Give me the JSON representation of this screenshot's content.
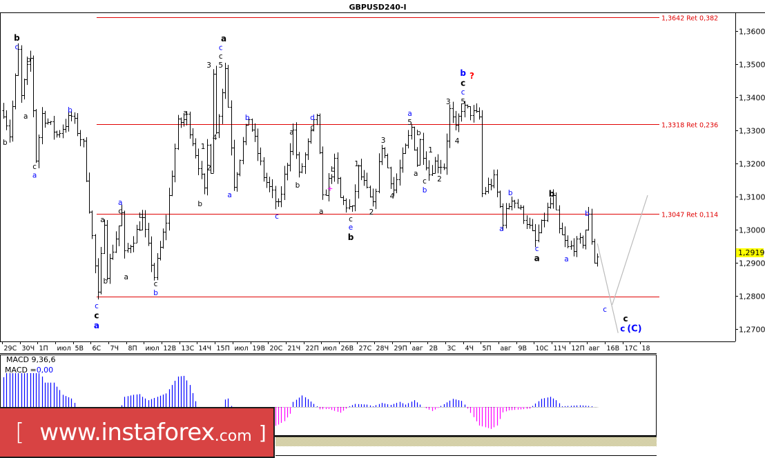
{
  "title": "GBPUSD240-I",
  "current_price_label": "1,2919",
  "indicator": {
    "name": "MACD 9,36,6",
    "value_prefix": "MACD =",
    "value": "0,00"
  },
  "banner": {
    "bracket_open": "[",
    "site": "www.instaforex",
    "tld": ".com",
    "bracket_close": "]"
  },
  "colors": {
    "bars": "#000000",
    "levels": "#e00000",
    "macd_positive": "#0000ff",
    "macd_negative": "#ff00ff",
    "price_highlight": "#ffff00",
    "projection": "#bbbbbb",
    "banner": "#d84343"
  },
  "chart_data": {
    "type": "ohlc",
    "symbol": "GBPUSD",
    "timeframe": "H4",
    "ylim": [
      1.268,
      1.366
    ],
    "y_ticks": [
      "1,3600",
      "1,3500",
      "1,3400",
      "1,3300",
      "1,3200",
      "1,3100",
      "1,3000",
      "1,2900",
      "1,2800",
      "1,2700"
    ],
    "y_tick_values": [
      1.36,
      1.35,
      1.34,
      1.33,
      1.32,
      1.31,
      1.3,
      1.29,
      1.28,
      1.27
    ],
    "x_ticks": [
      "29С",
      "30Ч",
      "1П",
      "июл",
      "5В",
      "6С",
      "7Ч",
      "8П",
      "июл",
      "12В",
      "13С",
      "14Ч",
      "15П",
      "июл",
      "19В",
      "20С",
      "21Ч",
      "22П",
      "июл",
      "26В",
      "27С",
      "28Ч",
      "29П",
      "авг",
      "2В",
      "3С",
      "4Ч",
      "5П",
      "авг",
      "9В",
      "10С",
      "11Ч",
      "12П",
      "авг",
      "16В",
      "17С",
      "18"
    ],
    "bars_per_x_tick": 6,
    "price_pivots": [
      [
        0,
        1.336
      ],
      [
        2,
        1.3288
      ],
      [
        5,
        1.3538
      ],
      [
        6,
        1.34
      ],
      [
        8,
        1.3485
      ],
      [
        9,
        1.3515
      ],
      [
        11,
        1.3215
      ],
      [
        13,
        1.335
      ],
      [
        18,
        1.3288
      ],
      [
        23,
        1.3344
      ],
      [
        27,
        1.3256
      ],
      [
        29,
        1.3069
      ],
      [
        32,
        1.2798
      ],
      [
        34,
        1.3031
      ],
      [
        35,
        1.2871
      ],
      [
        40,
        1.3048
      ],
      [
        41,
        1.2923
      ],
      [
        47,
        1.3031
      ],
      [
        51,
        1.286
      ],
      [
        55,
        1.3027
      ],
      [
        59,
        1.3319
      ],
      [
        62,
        1.334
      ],
      [
        66,
        1.32
      ],
      [
        68,
        1.311
      ],
      [
        69,
        1.3252
      ],
      [
        70,
        1.3188
      ],
      [
        71,
        1.3485
      ],
      [
        72,
        1.329
      ],
      [
        75,
        1.349
      ],
      [
        78,
        1.3142
      ],
      [
        83,
        1.334
      ],
      [
        88,
        1.3163
      ],
      [
        93,
        1.3069
      ],
      [
        98,
        1.3298
      ],
      [
        100,
        1.3162
      ],
      [
        106,
        1.335
      ],
      [
        108,
        1.309
      ],
      [
        112,
        1.32
      ],
      [
        114,
        1.3094
      ],
      [
        118,
        1.3058
      ],
      [
        120,
        1.3183
      ],
      [
        125,
        1.307
      ],
      [
        128,
        1.3256
      ],
      [
        132,
        1.3121
      ],
      [
        138,
        1.3308
      ],
      [
        140,
        1.32
      ],
      [
        141,
        1.3267
      ],
      [
        144,
        1.3171
      ],
      [
        146,
        1.3204
      ],
      [
        149,
        1.3194
      ],
      [
        151,
        1.336
      ],
      [
        153,
        1.33
      ],
      [
        155,
        1.3371
      ],
      [
        161,
        1.334
      ],
      [
        162,
        1.311
      ],
      [
        166,
        1.3152
      ],
      [
        169,
        1.3027
      ],
      [
        172,
        1.31
      ],
      [
        177,
        1.3027
      ],
      [
        180,
        1.2965
      ],
      [
        184,
        1.306
      ],
      [
        186,
        1.3094
      ],
      [
        188,
        1.2996
      ],
      [
        191,
        1.2944
      ],
      [
        196,
        1.2965
      ],
      [
        198,
        1.3038
      ],
      [
        200,
        1.2906
      ],
      [
        201,
        1.2919
      ]
    ],
    "levels": [
      {
        "price": 1.3642,
        "label": "1,3642 Ret 0,382"
      },
      {
        "price": 1.3318,
        "label": "1,3318 Ret 0,236"
      },
      {
        "price": 1.3047,
        "label": "1,3047 Ret 0,114"
      },
      {
        "price": 1.2798,
        "label": ""
      }
    ],
    "level_start_bar": 32,
    "projection": [
      [
        [
          201,
          1.2958
        ],
        [
          208,
          1.2688
        ]
      ],
      [
        [
          206,
          1.2773
        ],
        [
          218,
          1.3104
        ]
      ]
    ],
    "annotations": [
      {
        "bar": 5,
        "price": 1.3579,
        "text": "b",
        "color": "#000000",
        "bold": true
      },
      {
        "bar": 5,
        "price": 1.3556,
        "text": "c",
        "color": "#0000ff"
      },
      {
        "bar": 9,
        "price": 1.3515,
        "text": "b",
        "color": "#000000"
      },
      {
        "bar": 8,
        "price": 1.3344,
        "text": "a",
        "color": "#000000"
      },
      {
        "bar": 1,
        "price": 1.3265,
        "text": "b",
        "color": "#000000"
      },
      {
        "bar": 11,
        "price": 1.3192,
        "text": "c",
        "color": "#000000"
      },
      {
        "bar": 11,
        "price": 1.3173,
        "text": "a",
        "color": "#0000ff"
      },
      {
        "bar": 23,
        "price": 1.3363,
        "text": "b",
        "color": "#0000ff"
      },
      {
        "bar": 34,
        "price": 1.3031,
        "text": "a",
        "color": "#000000"
      },
      {
        "bar": 35,
        "price": 1.2846,
        "text": "b",
        "color": "#000000"
      },
      {
        "bar": 40,
        "price": 1.3083,
        "text": "a",
        "color": "#0000ff"
      },
      {
        "bar": 40,
        "price": 1.3063,
        "text": "c",
        "color": "#000000"
      },
      {
        "bar": 42,
        "price": 1.2858,
        "text": "a",
        "color": "#000000"
      },
      {
        "bar": 47,
        "price": 1.3044,
        "text": "b",
        "color": "#000000"
      },
      {
        "bar": 52,
        "price": 1.2837,
        "text": "c",
        "color": "#000000"
      },
      {
        "bar": 52,
        "price": 1.281,
        "text": "b",
        "color": "#0000ff"
      },
      {
        "bar": 32,
        "price": 1.2771,
        "text": "c",
        "color": "#0000ff"
      },
      {
        "bar": 32,
        "price": 1.2752,
        "text": "c",
        "color": "#000000",
        "bold": true
      },
      {
        "bar": 32,
        "price": 1.2725,
        "text": "a",
        "color": "#0000ff",
        "bold": true
      },
      {
        "bar": 62,
        "price": 1.3354,
        "text": "a",
        "color": "#000000"
      },
      {
        "bar": 67,
        "price": 1.3079,
        "text": "b",
        "color": "#000000"
      },
      {
        "bar": 68,
        "price": 1.3252,
        "text": "1",
        "color": "#000000"
      },
      {
        "bar": 70,
        "price": 1.3188,
        "text": "2",
        "color": "#000000"
      },
      {
        "bar": 70,
        "price": 1.3498,
        "text": "3",
        "color": "#000000"
      },
      {
        "bar": 72,
        "price": 1.3279,
        "text": "4",
        "color": "#000000"
      },
      {
        "bar": 74,
        "price": 1.3498,
        "text": "5",
        "color": "#000000"
      },
      {
        "bar": 74,
        "price": 1.3525,
        "text": "c",
        "color": "#000000"
      },
      {
        "bar": 74,
        "price": 1.3548,
        "text": "c",
        "color": "#0000ff"
      },
      {
        "bar": 75,
        "price": 1.3571,
        "text": "a",
        "color": "#000000",
        "bold": true
      },
      {
        "bar": 77,
        "price": 1.3106,
        "text": "a",
        "color": "#0000ff"
      },
      {
        "bar": 83,
        "price": 1.334,
        "text": "b",
        "color": "#0000ff"
      },
      {
        "bar": 93,
        "price": 1.3042,
        "text": "c",
        "color": "#0000ff"
      },
      {
        "bar": 98,
        "price": 1.3296,
        "text": "a",
        "color": "#000000"
      },
      {
        "bar": 100,
        "price": 1.3135,
        "text": "b",
        "color": "#000000"
      },
      {
        "bar": 105,
        "price": 1.334,
        "text": "d",
        "color": "#0000ff"
      },
      {
        "bar": 105,
        "price": 1.331,
        "text": "c",
        "color": "#000000"
      },
      {
        "bar": 108,
        "price": 1.3056,
        "text": "a",
        "color": "#000000"
      },
      {
        "bar": 112,
        "price": 1.3183,
        "text": "b",
        "color": "#000000"
      },
      {
        "bar": 111,
        "price": 1.3125,
        "text": "+",
        "color": "#ff00ff"
      },
      {
        "bar": 120,
        "price": 1.32,
        "text": "1",
        "color": "#000000"
      },
      {
        "bar": 118,
        "price": 1.3033,
        "text": "c",
        "color": "#000000"
      },
      {
        "bar": 118,
        "price": 1.3008,
        "text": "e",
        "color": "#0000ff"
      },
      {
        "bar": 118,
        "price": 1.2977,
        "text": "b",
        "color": "#000000",
        "bold": true
      },
      {
        "bar": 125,
        "price": 1.3054,
        "text": "2",
        "color": "#000000"
      },
      {
        "bar": 129,
        "price": 1.3271,
        "text": "3",
        "color": "#000000"
      },
      {
        "bar": 132,
        "price": 1.3102,
        "text": "4",
        "color": "#000000"
      },
      {
        "bar": 138,
        "price": 1.3352,
        "text": "a",
        "color": "#0000ff"
      },
      {
        "bar": 138,
        "price": 1.3325,
        "text": "5",
        "color": "#000000"
      },
      {
        "bar": 141,
        "price": 1.3294,
        "text": "b",
        "color": "#000000"
      },
      {
        "bar": 140,
        "price": 1.3171,
        "text": "a",
        "color": "#000000"
      },
      {
        "bar": 145,
        "price": 1.3242,
        "text": "1",
        "color": "#000000"
      },
      {
        "bar": 143,
        "price": 1.3148,
        "text": "c",
        "color": "#000000"
      },
      {
        "bar": 143,
        "price": 1.3121,
        "text": "b",
        "color": "#0000ff"
      },
      {
        "bar": 148,
        "price": 1.3154,
        "text": "2",
        "color": "#000000"
      },
      {
        "bar": 151,
        "price": 1.3388,
        "text": "3",
        "color": "#000000"
      },
      {
        "bar": 154,
        "price": 1.3269,
        "text": "4",
        "color": "#000000"
      },
      {
        "bar": 156,
        "price": 1.3388,
        "text": "5",
        "color": "#000000"
      },
      {
        "bar": 156,
        "price": 1.3417,
        "text": "c",
        "color": "#0000ff"
      },
      {
        "bar": 156,
        "price": 1.3435,
        "text": "c",
        "color": "#000000",
        "bold": true
      },
      {
        "bar": 156,
        "price": 1.3463,
        "text": "b",
        "color": "#0000ff",
        "bold": true
      },
      {
        "bar": 159,
        "price": 1.3465,
        "text": "?",
        "color": "#ff0000",
        "bold": true
      },
      {
        "bar": 169,
        "price": 1.3004,
        "text": "a",
        "color": "#0000ff"
      },
      {
        "bar": 172,
        "price": 1.3113,
        "text": "b",
        "color": "#0000ff"
      },
      {
        "bar": 181,
        "price": 1.2944,
        "text": "c",
        "color": "#0000ff"
      },
      {
        "bar": 181,
        "price": 1.2921,
        "text": "a",
        "color": "#000000",
        "bold": true
      },
      {
        "bar": 186,
        "price": 1.3108,
        "text": "b",
        "color": "#000000",
        "bold": true
      },
      {
        "bar": 191,
        "price": 1.2913,
        "text": "a",
        "color": "#0000ff"
      },
      {
        "bar": 198,
        "price": 1.305,
        "text": "b",
        "color": "#0000ff"
      },
      {
        "bar": 204,
        "price": 1.276,
        "text": "c",
        "color": "#0000ff"
      },
      {
        "bar": 211,
        "price": 1.2731,
        "text": "c",
        "color": "#000000",
        "bold": true
      },
      {
        "bar": 210,
        "price": 1.2708,
        "text": "c",
        "color": "#0000ff",
        "bold": true
      },
      {
        "bar": 214,
        "price": 1.2708,
        "text": "(C)",
        "color": "#0000ff",
        "bold": true,
        "large": true
      }
    ],
    "macd_histogram_keypoints": [
      [
        0,
        0.88
      ],
      [
        1,
        1
      ],
      [
        12,
        1
      ],
      [
        13,
        0.9
      ],
      [
        14,
        0.72
      ],
      [
        17,
        0.72
      ],
      [
        18,
        0.6
      ],
      [
        19,
        0.5
      ],
      [
        20,
        0.36
      ],
      [
        23,
        0.25
      ],
      [
        24,
        0.12
      ],
      [
        26,
        -0.2
      ],
      [
        32,
        -0.7
      ],
      [
        38,
        -0.3
      ],
      [
        40,
        0.05
      ],
      [
        41,
        0.3
      ],
      [
        44,
        0.36
      ],
      [
        46,
        0.38
      ],
      [
        47,
        0.3
      ],
      [
        49,
        0.2
      ],
      [
        52,
        0.3
      ],
      [
        55,
        0.4
      ],
      [
        57,
        0.65
      ],
      [
        59,
        0.9
      ],
      [
        61,
        0.92
      ],
      [
        63,
        0.65
      ],
      [
        65,
        0.17
      ],
      [
        66,
        -0.05
      ],
      [
        70,
        -0.2
      ],
      [
        74,
        0.0
      ],
      [
        75,
        0.22
      ],
      [
        76,
        0.25
      ],
      [
        77,
        0.03
      ],
      [
        80,
        -0.4
      ],
      [
        88,
        -0.7
      ],
      [
        93,
        -0.52
      ],
      [
        95,
        -0.42
      ],
      [
        97,
        -0.2
      ],
      [
        98,
        0.15
      ],
      [
        101,
        0.34
      ],
      [
        103,
        0.23
      ],
      [
        106,
        0.02
      ],
      [
        107,
        -0.07
      ],
      [
        110,
        -0.06
      ],
      [
        114,
        -0.17
      ],
      [
        116,
        -0.05
      ],
      [
        117,
        0.02
      ],
      [
        119,
        0.09
      ],
      [
        123,
        0.07
      ],
      [
        125,
        0.02
      ],
      [
        128,
        0.12
      ],
      [
        131,
        0.06
      ],
      [
        134,
        0.15
      ],
      [
        136,
        0.07
      ],
      [
        139,
        0.2
      ],
      [
        141,
        0.07
      ],
      [
        142,
        0.0
      ],
      [
        145,
        -0.12
      ],
      [
        147,
        -0.03
      ],
      [
        148,
        0.03
      ],
      [
        152,
        0.24
      ],
      [
        155,
        0.18
      ],
      [
        156,
        0.07
      ],
      [
        157,
        -0.05
      ],
      [
        161,
        -0.55
      ],
      [
        165,
        -0.65
      ],
      [
        167,
        -0.55
      ],
      [
        169,
        -0.16
      ],
      [
        171,
        -0.1
      ],
      [
        178,
        -0.05
      ],
      [
        179,
        0.03
      ],
      [
        182,
        0.24
      ],
      [
        185,
        0.3
      ],
      [
        187,
        0.2
      ],
      [
        189,
        0.02
      ],
      [
        191,
        0.03
      ],
      [
        195,
        0.05
      ],
      [
        198,
        0.03
      ],
      [
        200,
        0.01
      ]
    ]
  }
}
